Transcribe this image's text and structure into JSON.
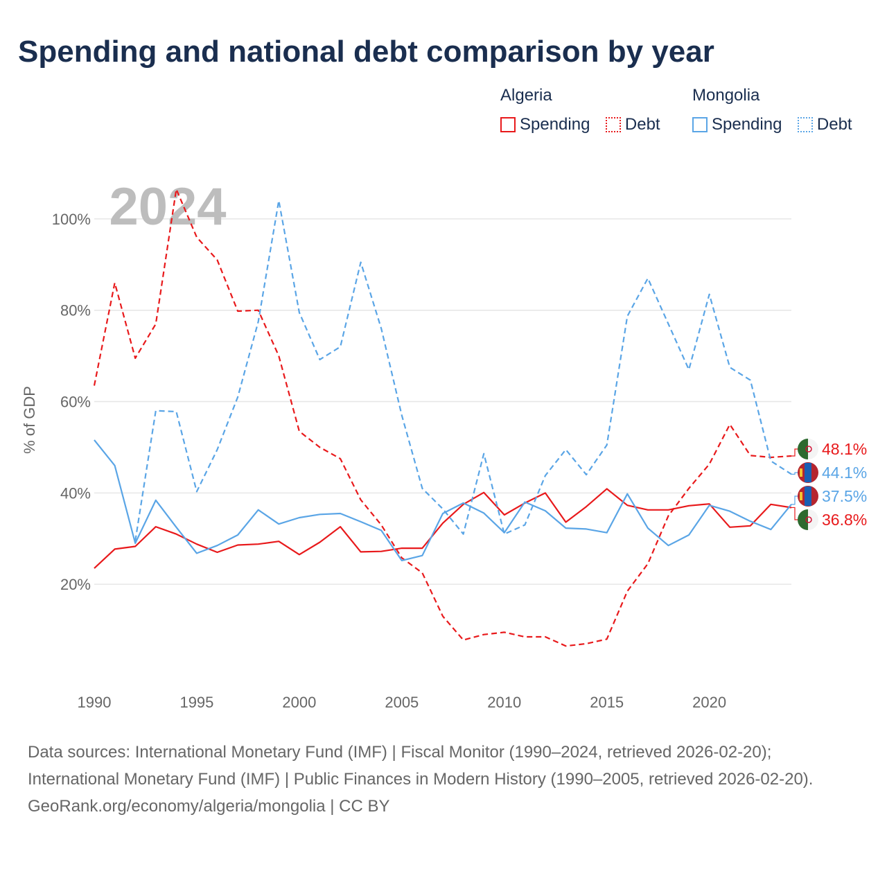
{
  "title": "Spending and national debt comparison by year",
  "legend": {
    "groups": [
      {
        "country": "Algeria",
        "color": "#e8191b",
        "items": [
          {
            "label": "Spending",
            "style": "solid"
          },
          {
            "label": "Debt",
            "style": "dotted"
          }
        ]
      },
      {
        "country": "Mongolia",
        "color": "#5aa5e6",
        "items": [
          {
            "label": "Spending",
            "style": "solid"
          },
          {
            "label": "Debt",
            "style": "dotted"
          }
        ]
      }
    ]
  },
  "chart_data": {
    "type": "line",
    "year_watermark": "2024",
    "ylabel": "% of GDP",
    "xlim": [
      1990,
      2024
    ],
    "ylim": [
      0,
      110
    ],
    "x_ticks": [
      1990,
      1995,
      2000,
      2005,
      2010,
      2015,
      2020
    ],
    "y_ticks": [
      20,
      40,
      60,
      80,
      100
    ],
    "y_tick_labels": [
      "20%",
      "40%",
      "60%",
      "80%",
      "100%"
    ],
    "years": [
      1990,
      1991,
      1992,
      1993,
      1994,
      1995,
      1996,
      1997,
      1998,
      1999,
      2000,
      2001,
      2002,
      2003,
      2004,
      2005,
      2006,
      2007,
      2008,
      2009,
      2010,
      2011,
      2012,
      2013,
      2014,
      2015,
      2016,
      2017,
      2018,
      2019,
      2020,
      2021,
      2022,
      2023,
      2024
    ],
    "series": [
      {
        "name": "Algeria Spending",
        "country": "Algeria",
        "measure": "Spending",
        "color": "#e8191b",
        "dash": "solid",
        "values": [
          23.5,
          27.7,
          28.3,
          32.6,
          31.0,
          28.8,
          27.0,
          28.6,
          28.8,
          29.4,
          26.5,
          29.2,
          32.6,
          27.1,
          27.2,
          27.9,
          27.9,
          33.4,
          37.5,
          40.1,
          35.2,
          37.8,
          40.0,
          33.6,
          37.0,
          40.9,
          37.3,
          36.3,
          36.3,
          37.2,
          37.6,
          32.5,
          32.8,
          37.5,
          36.8
        ],
        "end_label": "36.8%"
      },
      {
        "name": "Algeria Debt",
        "country": "Algeria",
        "measure": "Debt",
        "color": "#e8191b",
        "dash": "dashed",
        "values": [
          63.5,
          86.0,
          69.5,
          77.0,
          106.5,
          96.0,
          91.0,
          79.8,
          80.0,
          70.0,
          53.5,
          50.0,
          47.5,
          38.5,
          33.0,
          25.8,
          22.5,
          13.0,
          7.8,
          9.0,
          9.5,
          8.5,
          8.5,
          6.5,
          7.0,
          8.0,
          18.5,
          24.5,
          35.0,
          41.0,
          46.3,
          55.0,
          48.2,
          47.8,
          48.1
        ],
        "end_label": "48.1%"
      },
      {
        "name": "Mongolia Spending",
        "country": "Mongolia",
        "measure": "Spending",
        "color": "#5aa5e6",
        "dash": "solid",
        "values": [
          51.6,
          46.0,
          29.0,
          38.4,
          32.5,
          26.8,
          28.5,
          30.8,
          36.3,
          33.2,
          34.6,
          35.3,
          35.5,
          33.7,
          31.8,
          25.2,
          26.3,
          35.5,
          37.8,
          35.6,
          31.3,
          38.0,
          36.1,
          32.3,
          32.1,
          31.3,
          39.8,
          32.3,
          28.5,
          30.8,
          37.3,
          36.0,
          33.8,
          32.0,
          37.5
        ],
        "end_label": "37.5%"
      },
      {
        "name": "Mongolia Debt",
        "country": "Mongolia",
        "measure": "Debt",
        "color": "#5aa5e6",
        "dash": "dashed",
        "values": [
          null,
          null,
          29.5,
          58.0,
          57.8,
          40.3,
          49.5,
          61.0,
          77.5,
          104.0,
          79.5,
          69.2,
          72.0,
          90.5,
          76.0,
          57.0,
          41.0,
          36.5,
          31.0,
          48.6,
          31.0,
          33.0,
          43.8,
          49.5,
          44.0,
          50.5,
          78.7,
          87.0,
          77.0,
          67.0,
          83.5,
          67.5,
          64.7,
          47.0,
          44.1
        ],
        "end_label": "44.1%"
      }
    ]
  },
  "footer": {
    "sources": "Data sources: International Monetary Fund (IMF) | Fiscal Monitor (1990–2024, retrieved 2026-02-20); International Monetary Fund (IMF) | Public Finances in Modern History (1990–2005, retrieved 2026-02-20).",
    "credit": "GeoRank.org/economy/algeria/mongolia | CC BY"
  }
}
